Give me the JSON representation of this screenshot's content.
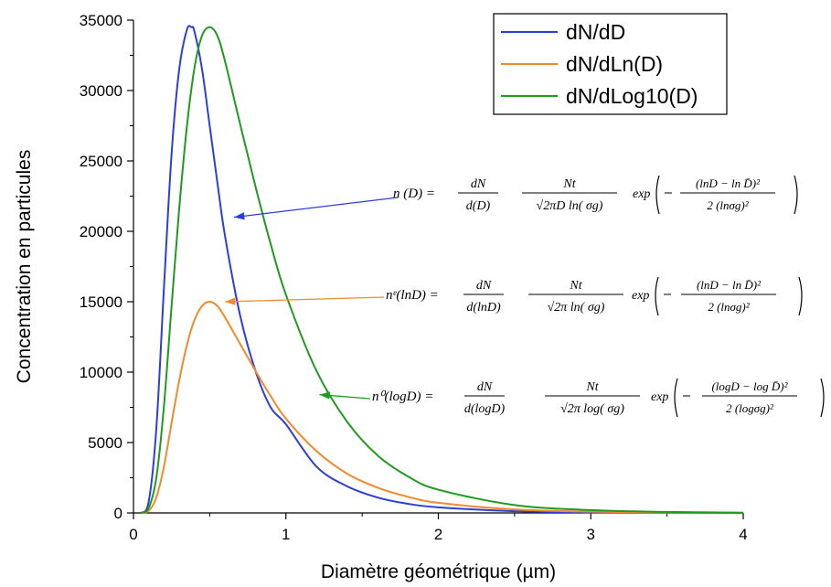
{
  "chart_data": {
    "type": "line",
    "xlabel": "Diamètre géométrique (µm)",
    "ylabel": "Concentration en particules",
    "xlim": [
      0,
      4
    ],
    "ylim": [
      0,
      35000
    ],
    "x_ticks": [
      "0",
      "1",
      "2",
      "3",
      "4"
    ],
    "y_ticks": [
      "0",
      "5000",
      "10000",
      "15000",
      "20000",
      "25000",
      "30000",
      "35000"
    ],
    "grid": false,
    "legend_position": "top-right",
    "series": [
      {
        "name": "dN/dD",
        "color": "#2b3fd6",
        "x": [
          0.05,
          0.1,
          0.15,
          0.2,
          0.25,
          0.3,
          0.35,
          0.38,
          0.4,
          0.45,
          0.5,
          0.55,
          0.6,
          0.7,
          0.8,
          0.9,
          1.0,
          1.2,
          1.4,
          1.6,
          1.8,
          2.0,
          2.5,
          3.0,
          3.5,
          4.0
        ],
        "y": [
          0,
          800,
          6000,
          16000,
          25500,
          31500,
          34300,
          34500,
          34200,
          31500,
          27500,
          23500,
          19700,
          14000,
          10100,
          7500,
          6300,
          3300,
          1900,
          1100,
          650,
          400,
          120,
          40,
          10,
          0
        ]
      },
      {
        "name": "dN/dLn(D)",
        "color": "#f08a2c",
        "x": [
          0.05,
          0.1,
          0.15,
          0.2,
          0.25,
          0.3,
          0.35,
          0.4,
          0.45,
          0.5,
          0.55,
          0.6,
          0.7,
          0.8,
          0.9,
          1.0,
          1.2,
          1.4,
          1.6,
          1.8,
          2.0,
          2.5,
          3.0,
          3.5,
          4.0
        ],
        "y": [
          0,
          150,
          1100,
          3300,
          6400,
          9400,
          11900,
          13700,
          14700,
          15000,
          14700,
          13900,
          12000,
          10100,
          8300,
          6700,
          4400,
          2800,
          1800,
          1150,
          720,
          250,
          90,
          30,
          10
        ]
      },
      {
        "name": "dN/dLog10(D)",
        "color": "#1f9a1f",
        "x": [
          0.05,
          0.1,
          0.15,
          0.2,
          0.25,
          0.3,
          0.35,
          0.4,
          0.45,
          0.5,
          0.55,
          0.6,
          0.7,
          0.8,
          0.9,
          1.0,
          1.2,
          1.4,
          1.6,
          1.8,
          2.0,
          2.5,
          3.0,
          3.5,
          4.0
        ],
        "y": [
          0,
          350,
          2500,
          7600,
          14700,
          21600,
          27400,
          31600,
          33900,
          34500,
          33900,
          32100,
          27600,
          23200,
          19100,
          15500,
          10100,
          6500,
          4100,
          2600,
          1650,
          560,
          200,
          70,
          20
        ]
      }
    ],
    "annotations": [
      {
        "series": "dN/dD",
        "color": "#2b3fd6",
        "lhs": "n (D) =",
        "frac1_num": "dN",
        "frac1_den": "d(D)",
        "frac2_num": "Nt",
        "frac2_den": "√2πD ln( σg)",
        "exp_text": "exp",
        "exp_num": "(lnD − ln D̄)²",
        "exp_den": "2 (lnσg)²"
      },
      {
        "series": "dN/dLn(D)",
        "color": "#f08a2c",
        "lhs": "nᵉ(lnD) =",
        "frac1_num": "dN",
        "frac1_den": "d(lnD)",
        "frac2_num": "Nt",
        "frac2_den": "√2π ln( σg)",
        "exp_text": "exp",
        "exp_num": "(lnD − ln D̄)²",
        "exp_den": "2 (lnσg)²"
      },
      {
        "series": "dN/dLog10(D)",
        "color": "#1f9a1f",
        "lhs": "n⁰(logD) =",
        "frac1_num": "dN",
        "frac1_den": "d(logD)",
        "frac2_num": "Nt",
        "frac2_den": "√2π log( σg)",
        "exp_text": "exp",
        "exp_num": "(logD − log D̄)²",
        "exp_den": "2 (logσg)²"
      }
    ]
  }
}
